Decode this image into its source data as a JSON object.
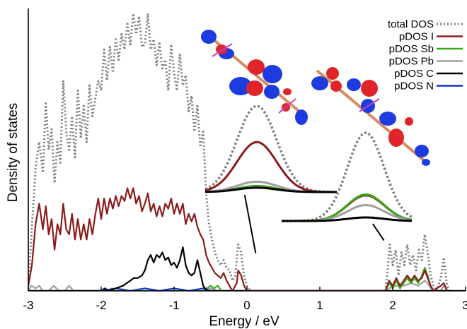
{
  "chart_data": {
    "type": "line",
    "xlabel": "Energy / eV",
    "ylabel": "Density of states",
    "xlim": [
      -3,
      3
    ],
    "x_ticks": [
      "-3",
      "-2",
      "-1",
      "0",
      "1",
      "2",
      "3"
    ],
    "legend_position": "top-right",
    "grid": false,
    "series": [
      {
        "name": "total DOS",
        "color": "#808080",
        "style": "dotted",
        "points": [
          [
            -3.0,
            0.02
          ],
          [
            -2.95,
            0.25
          ],
          [
            -2.9,
            0.48
          ],
          [
            -2.85,
            0.58
          ],
          [
            -2.8,
            0.46
          ],
          [
            -2.76,
            0.73
          ],
          [
            -2.72,
            0.55
          ],
          [
            -2.68,
            0.63
          ],
          [
            -2.64,
            0.42
          ],
          [
            -2.6,
            0.58
          ],
          [
            -2.56,
            0.5
          ],
          [
            -2.52,
            0.82
          ],
          [
            -2.48,
            0.62
          ],
          [
            -2.44,
            0.55
          ],
          [
            -2.4,
            0.68
          ],
          [
            -2.36,
            0.52
          ],
          [
            -2.32,
            0.78
          ],
          [
            -2.28,
            0.6
          ],
          [
            -2.24,
            0.72
          ],
          [
            -2.2,
            0.58
          ],
          [
            -2.16,
            0.8
          ],
          [
            -2.12,
            0.68
          ],
          [
            -2.08,
            0.75
          ],
          [
            -2.04,
            0.82
          ],
          [
            -2.0,
            0.78
          ],
          [
            -1.96,
            0.94
          ],
          [
            -1.92,
            0.82
          ],
          [
            -1.88,
            0.95
          ],
          [
            -1.84,
            0.85
          ],
          [
            -1.8,
            0.98
          ],
          [
            -1.76,
            0.9
          ],
          [
            -1.72,
            1.0
          ],
          [
            -1.68,
            0.94
          ],
          [
            -1.64,
            1.04
          ],
          [
            -1.6,
            0.96
          ],
          [
            -1.56,
            1.08
          ],
          [
            -1.52,
            1.0
          ],
          [
            -1.48,
            1.07
          ],
          [
            -1.44,
            0.95
          ],
          [
            -1.4,
            0.96
          ],
          [
            -1.36,
            1.08
          ],
          [
            -1.32,
            0.94
          ],
          [
            -1.28,
            0.98
          ],
          [
            -1.24,
            0.88
          ],
          [
            -1.2,
            0.97
          ],
          [
            -1.16,
            0.86
          ],
          [
            -1.12,
            0.9
          ],
          [
            -1.08,
            0.78
          ],
          [
            -1.04,
            0.96
          ],
          [
            -1.0,
            0.85
          ],
          [
            -0.96,
            0.78
          ],
          [
            -0.92,
            0.92
          ],
          [
            -0.88,
            0.8
          ],
          [
            -0.84,
            0.84
          ],
          [
            -0.8,
            0.7
          ],
          [
            -0.76,
            0.76
          ],
          [
            -0.72,
            0.62
          ],
          [
            -0.68,
            0.72
          ],
          [
            -0.64,
            0.56
          ],
          [
            -0.6,
            0.62
          ],
          [
            -0.56,
            0.38
          ],
          [
            -0.52,
            0.26
          ],
          [
            -0.48,
            0.2
          ],
          [
            -0.44,
            0.15
          ],
          [
            -0.4,
            0.12
          ],
          [
            -0.36,
            0.1
          ],
          [
            -0.32,
            0.12
          ],
          [
            -0.28,
            0.09
          ],
          [
            -0.24,
            0.08
          ],
          [
            -0.2,
            0.04
          ],
          [
            -0.16,
            0.06
          ],
          [
            -0.12,
            0.18
          ],
          [
            -0.08,
            0.15
          ],
          [
            -0.04,
            0.06
          ],
          [
            0.0,
            0.02
          ],
          [
            0.05,
            0.0
          ],
          [
            1.9,
            0.0
          ],
          [
            1.93,
            0.08
          ],
          [
            1.96,
            0.18
          ],
          [
            2.0,
            0.1
          ],
          [
            2.04,
            0.16
          ],
          [
            2.08,
            0.06
          ],
          [
            2.12,
            0.15
          ],
          [
            2.16,
            0.1
          ],
          [
            2.2,
            0.18
          ],
          [
            2.24,
            0.1
          ],
          [
            2.28,
            0.14
          ],
          [
            2.32,
            0.08
          ],
          [
            2.36,
            0.16
          ],
          [
            2.4,
            0.12
          ],
          [
            2.44,
            0.22
          ],
          [
            2.48,
            0.15
          ],
          [
            2.52,
            0.06
          ],
          [
            2.56,
            0.02
          ],
          [
            2.6,
            0.0
          ],
          [
            2.66,
            0.05
          ],
          [
            2.7,
            0.13
          ],
          [
            2.74,
            0.03
          ],
          [
            2.78,
            0.0
          ]
        ]
      },
      {
        "name": "pDOS I",
        "color": "#8b1a1a",
        "style": "solid",
        "points": [
          [
            -3.0,
            0.02
          ],
          [
            -2.95,
            0.1
          ],
          [
            -2.9,
            0.26
          ],
          [
            -2.85,
            0.34
          ],
          [
            -2.8,
            0.24
          ],
          [
            -2.76,
            0.33
          ],
          [
            -2.72,
            0.22
          ],
          [
            -2.68,
            0.28
          ],
          [
            -2.64,
            0.16
          ],
          [
            -2.6,
            0.26
          ],
          [
            -2.56,
            0.22
          ],
          [
            -2.52,
            0.34
          ],
          [
            -2.48,
            0.24
          ],
          [
            -2.44,
            0.22
          ],
          [
            -2.4,
            0.3
          ],
          [
            -2.36,
            0.2
          ],
          [
            -2.32,
            0.28
          ],
          [
            -2.28,
            0.2
          ],
          [
            -2.24,
            0.26
          ],
          [
            -2.2,
            0.2
          ],
          [
            -2.16,
            0.28
          ],
          [
            -2.12,
            0.22
          ],
          [
            -2.08,
            0.3
          ],
          [
            -2.04,
            0.36
          ],
          [
            -2.0,
            0.28
          ],
          [
            -1.96,
            0.36
          ],
          [
            -1.92,
            0.3
          ],
          [
            -1.88,
            0.36
          ],
          [
            -1.84,
            0.32
          ],
          [
            -1.8,
            0.37
          ],
          [
            -1.76,
            0.33
          ],
          [
            -1.72,
            0.37
          ],
          [
            -1.68,
            0.35
          ],
          [
            -1.64,
            0.4
          ],
          [
            -1.6,
            0.36
          ],
          [
            -1.56,
            0.4
          ],
          [
            -1.52,
            0.34
          ],
          [
            -1.48,
            0.37
          ],
          [
            -1.44,
            0.31
          ],
          [
            -1.4,
            0.34
          ],
          [
            -1.36,
            0.38
          ],
          [
            -1.32,
            0.31
          ],
          [
            -1.28,
            0.34
          ],
          [
            -1.24,
            0.29
          ],
          [
            -1.2,
            0.33
          ],
          [
            -1.16,
            0.29
          ],
          [
            -1.12,
            0.34
          ],
          [
            -1.08,
            0.32
          ],
          [
            -1.04,
            0.36
          ],
          [
            -1.0,
            0.3
          ],
          [
            -0.96,
            0.34
          ],
          [
            -0.92,
            0.3
          ],
          [
            -0.88,
            0.34
          ],
          [
            -0.84,
            0.26
          ],
          [
            -0.8,
            0.3
          ],
          [
            -0.76,
            0.27
          ],
          [
            -0.72,
            0.3
          ],
          [
            -0.68,
            0.25
          ],
          [
            -0.64,
            0.22
          ],
          [
            -0.6,
            0.2
          ],
          [
            -0.56,
            0.14
          ],
          [
            -0.52,
            0.11
          ],
          [
            -0.48,
            0.09
          ],
          [
            -0.44,
            0.07
          ],
          [
            -0.4,
            0.06
          ],
          [
            -0.36,
            0.05
          ],
          [
            -0.32,
            0.07
          ],
          [
            -0.28,
            0.04
          ],
          [
            -0.24,
            0.02
          ],
          [
            -0.2,
            0.0
          ],
          [
            -0.14,
            0.03
          ],
          [
            -0.12,
            0.08
          ],
          [
            -0.08,
            0.06
          ],
          [
            -0.04,
            0.02
          ],
          [
            0.0,
            0.0
          ],
          [
            1.9,
            0.0
          ],
          [
            1.95,
            0.04
          ],
          [
            2.0,
            0.02
          ],
          [
            2.05,
            0.05
          ],
          [
            2.1,
            0.02
          ],
          [
            2.15,
            0.04
          ],
          [
            2.2,
            0.06
          ],
          [
            2.25,
            0.04
          ],
          [
            2.3,
            0.06
          ],
          [
            2.35,
            0.04
          ],
          [
            2.4,
            0.05
          ],
          [
            2.44,
            0.08
          ],
          [
            2.48,
            0.05
          ],
          [
            2.52,
            0.02
          ],
          [
            2.56,
            0.0
          ],
          [
            2.66,
            0.02
          ],
          [
            2.7,
            0.03
          ],
          [
            2.75,
            0.0
          ]
        ]
      },
      {
        "name": "pDOS Sb",
        "color": "#3aa81d",
        "style": "solid",
        "points": [
          [
            -3.0,
            0.0
          ],
          [
            -0.6,
            0.0
          ],
          [
            -0.55,
            0.01
          ],
          [
            -0.5,
            0.02
          ],
          [
            -0.45,
            0.01
          ],
          [
            -0.4,
            0.02
          ],
          [
            -0.35,
            0.0
          ],
          [
            1.9,
            0.0
          ],
          [
            1.95,
            0.03
          ],
          [
            2.0,
            0.01
          ],
          [
            2.05,
            0.04
          ],
          [
            2.1,
            0.01
          ],
          [
            2.15,
            0.03
          ],
          [
            2.2,
            0.05
          ],
          [
            2.25,
            0.03
          ],
          [
            2.3,
            0.05
          ],
          [
            2.35,
            0.03
          ],
          [
            2.4,
            0.06
          ],
          [
            2.44,
            0.09
          ],
          [
            2.48,
            0.06
          ],
          [
            2.52,
            0.02
          ],
          [
            2.56,
            0.0
          ],
          [
            2.75,
            0.0
          ]
        ]
      },
      {
        "name": "pDOS Pb",
        "color": "#a0a0a0",
        "style": "solid",
        "points": [
          [
            -3.0,
            0.0
          ],
          [
            -2.96,
            0.02
          ],
          [
            -2.9,
            0.01
          ],
          [
            -2.85,
            0.02
          ],
          [
            -2.8,
            0.0
          ],
          [
            -2.72,
            0.0
          ],
          [
            -2.65,
            0.02
          ],
          [
            -2.58,
            0.0
          ],
          [
            -2.5,
            0.0
          ],
          [
            -2.44,
            0.02
          ],
          [
            -2.38,
            0.0
          ],
          [
            -1.9,
            0.0
          ],
          [
            -1.85,
            0.01
          ],
          [
            -1.8,
            0.0
          ],
          [
            -0.6,
            0.0
          ],
          [
            -0.5,
            0.01
          ],
          [
            -0.4,
            0.0
          ],
          [
            1.9,
            0.0
          ],
          [
            1.95,
            0.01
          ],
          [
            2.05,
            0.02
          ],
          [
            2.15,
            0.02
          ],
          [
            2.25,
            0.03
          ],
          [
            2.35,
            0.02
          ],
          [
            2.44,
            0.04
          ],
          [
            2.48,
            0.03
          ],
          [
            2.52,
            0.01
          ],
          [
            2.56,
            0.0
          ],
          [
            2.66,
            0.0
          ],
          [
            2.7,
            0.02
          ],
          [
            2.75,
            0.0
          ]
        ]
      },
      {
        "name": "pDOS C",
        "color": "#000000",
        "style": "solid",
        "points": [
          [
            -3.0,
            0.0
          ],
          [
            -2.0,
            0.0
          ],
          [
            -1.95,
            0.01
          ],
          [
            -1.9,
            0.0
          ],
          [
            -1.8,
            0.01
          ],
          [
            -1.7,
            0.02
          ],
          [
            -1.6,
            0.04
          ],
          [
            -1.55,
            0.05
          ],
          [
            -1.5,
            0.05
          ],
          [
            -1.44,
            0.06
          ],
          [
            -1.4,
            0.08
          ],
          [
            -1.36,
            0.12
          ],
          [
            -1.32,
            0.14
          ],
          [
            -1.28,
            0.11
          ],
          [
            -1.24,
            0.14
          ],
          [
            -1.2,
            0.13
          ],
          [
            -1.16,
            0.15
          ],
          [
            -1.12,
            0.12
          ],
          [
            -1.08,
            0.13
          ],
          [
            -1.04,
            0.1
          ],
          [
            -1.0,
            0.11
          ],
          [
            -0.96,
            0.09
          ],
          [
            -0.92,
            0.12
          ],
          [
            -0.88,
            0.17
          ],
          [
            -0.84,
            0.1
          ],
          [
            -0.8,
            0.07
          ],
          [
            -0.76,
            0.06
          ],
          [
            -0.72,
            0.07
          ],
          [
            -0.68,
            0.12
          ],
          [
            -0.64,
            0.07
          ],
          [
            -0.6,
            0.02
          ],
          [
            -0.55,
            0.0
          ],
          [
            3.0,
            0.0
          ]
        ]
      },
      {
        "name": "pDOS N",
        "color": "#1030d0",
        "style": "solid",
        "points": [
          [
            -3.0,
            0.0
          ],
          [
            -2.0,
            0.0
          ],
          [
            -1.8,
            0.01
          ],
          [
            -1.6,
            0.0
          ],
          [
            -1.4,
            0.01
          ],
          [
            -1.2,
            0.0
          ],
          [
            -1.0,
            0.01
          ],
          [
            -0.8,
            0.0
          ],
          [
            -0.6,
            0.01
          ],
          [
            -0.5,
            0.0
          ],
          [
            3.0,
            0.0
          ]
        ]
      }
    ],
    "inset_series": [
      {
        "name": "total DOS",
        "values": [
          1.0,
          1.0
        ]
      },
      {
        "name": "pDOS I",
        "values": [
          0.58,
          0.29
        ]
      },
      {
        "name": "pDOS Sb",
        "values": [
          0.07,
          0.3
        ]
      },
      {
        "name": "pDOS Pb",
        "values": [
          0.12,
          0.18
        ]
      },
      {
        "name": "pDOS C",
        "values": [
          0.05,
          0.04
        ]
      }
    ]
  },
  "colors": {
    "orbital_positive": "#e0242a",
    "orbital_negative": "#1e3be0",
    "bond": "#d88a60",
    "frame": "#000000",
    "plane": "#c040c0"
  }
}
